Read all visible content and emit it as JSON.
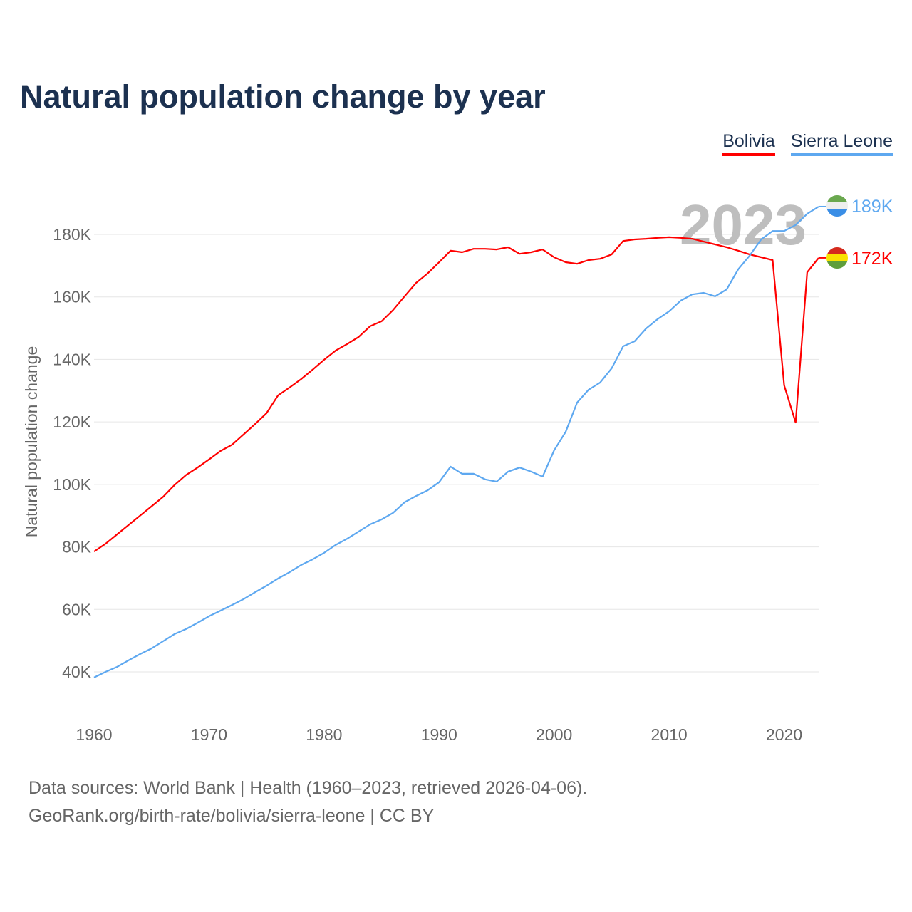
{
  "title": "Natural population change by year",
  "legend": [
    {
      "label": "Bolivia",
      "color": "#ff0000"
    },
    {
      "label": "Sierra Leone",
      "color": "#5ea8f0"
    }
  ],
  "footer": {
    "line1": "Data sources: World Bank | Health (1960–2023, retrieved 2026-04-06).",
    "line2": "GeoRank.org/birth-rate/bolivia/sierra-leone | CC BY"
  },
  "chart_data": {
    "type": "line",
    "title": "Natural population change by year",
    "xlabel": "",
    "ylabel": "Natural population change",
    "year_watermark": "2023",
    "xlim": [
      1960,
      2023
    ],
    "ylim": [
      40000,
      180000
    ],
    "x_ticks": [
      1960,
      1970,
      1980,
      1990,
      2000,
      2010,
      2020
    ],
    "x_tick_labels": [
      "1960",
      "1970",
      "1980",
      "1990",
      "2000",
      "2010",
      "2020"
    ],
    "y_ticks": [
      40000,
      60000,
      80000,
      100000,
      120000,
      140000,
      160000,
      180000
    ],
    "y_tick_labels": [
      "40K",
      "60K",
      "80K",
      "100K",
      "120K",
      "140K",
      "160K",
      "180K"
    ],
    "grid": true,
    "legend_position": "top-right",
    "x": [
      1960,
      1961,
      1962,
      1963,
      1964,
      1965,
      1966,
      1967,
      1968,
      1969,
      1970,
      1971,
      1972,
      1973,
      1974,
      1975,
      1976,
      1977,
      1978,
      1979,
      1980,
      1981,
      1982,
      1983,
      1984,
      1985,
      1986,
      1987,
      1988,
      1989,
      1990,
      1991,
      1992,
      1993,
      1994,
      1995,
      1996,
      1997,
      1998,
      1999,
      2000,
      2001,
      2002,
      2003,
      2004,
      2005,
      2006,
      2007,
      2008,
      2009,
      2010,
      2011,
      2012,
      2013,
      2014,
      2015,
      2016,
      2017,
      2018,
      2019,
      2020,
      2021,
      2022,
      2023
    ],
    "series": [
      {
        "name": "Bolivia",
        "color": "#ff0000",
        "end_label": "172K",
        "values": [
          78.5,
          81,
          84,
          87,
          90,
          93,
          96,
          99.8,
          103,
          105.4,
          108,
          110.7,
          112.7,
          116,
          119.3,
          122.8,
          128.5,
          131,
          133.7,
          136.7,
          139.9,
          142.8,
          144.9,
          147.2,
          150.6,
          152.2,
          155.8,
          160.2,
          164.5,
          167.5,
          171.1,
          174.8,
          174.3,
          175.4,
          175.4,
          175.2,
          175.9,
          173.8,
          174.3,
          175.2,
          172.7,
          171.1,
          170.6,
          171.8,
          172.2,
          173.6,
          177.9,
          178.4,
          178.6,
          178.9,
          179.1,
          178.9,
          178.6,
          177.7,
          176.8,
          175.9,
          174.8,
          173.6,
          172.7,
          171.8,
          131.7,
          119.8,
          167.9,
          172.5
        ],
        "unit": "thousand"
      },
      {
        "name": "Sierra Leone",
        "color": "#5ea8f0",
        "end_label": "189K",
        "values": [
          38.2,
          40,
          41.6,
          43.7,
          45.7,
          47.5,
          49.8,
          52.1,
          53.7,
          55.7,
          57.8,
          59.6,
          61.4,
          63.3,
          65.5,
          67.6,
          69.9,
          71.9,
          74.2,
          76,
          78.1,
          80.6,
          82.6,
          84.9,
          87.2,
          88.8,
          90.9,
          94.3,
          96.3,
          98.1,
          100.7,
          105.7,
          103.4,
          103.4,
          101.6,
          100.9,
          104.1,
          105.4,
          104.1,
          102.5,
          110.9,
          116.8,
          126.2,
          130.3,
          132.6,
          137.1,
          144.2,
          145.8,
          149.9,
          152.9,
          155.4,
          158.8,
          160.8,
          161.3,
          160.2,
          162.4,
          168.8,
          173.2,
          178.4,
          181.1,
          181.1,
          183,
          186.6,
          188.9
        ],
        "unit": "thousand"
      }
    ]
  }
}
